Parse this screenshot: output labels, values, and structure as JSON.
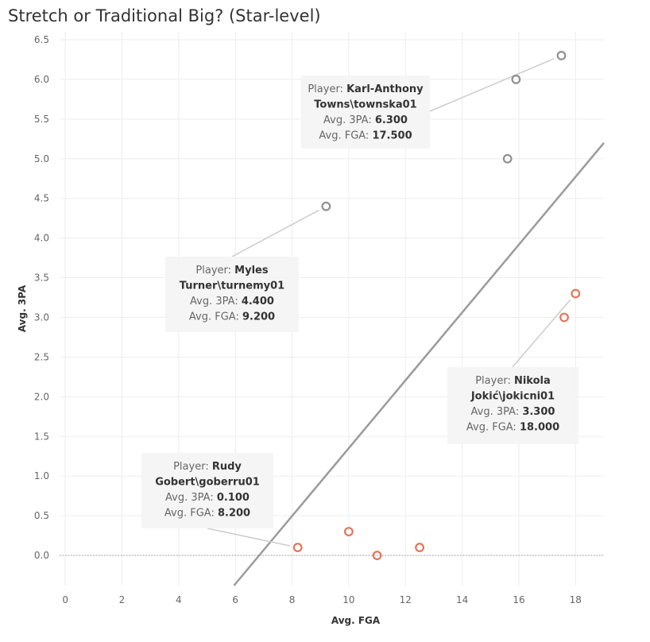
{
  "chart_data": {
    "type": "scatter",
    "title": "Stretch or Traditional Big? (Star-level)",
    "xlabel": "Avg. FGA",
    "ylabel": "Avg. 3PA",
    "xlim": [
      -0.2,
      19
    ],
    "ylim": [
      -0.38,
      6.6
    ],
    "xticks": [
      0,
      2,
      4,
      6,
      8,
      10,
      12,
      14,
      16,
      18
    ],
    "yticks": [
      0.0,
      0.5,
      1.0,
      1.5,
      2.0,
      2.5,
      3.0,
      3.5,
      4.0,
      4.5,
      5.0,
      5.5,
      6.0,
      6.5
    ],
    "grid": true,
    "reference_line": {
      "color": "#9b9b9b",
      "from": [
        5.95,
        -0.38
      ],
      "to": [
        19,
        5.2
      ]
    },
    "zero_line": 0,
    "series": [
      {
        "color": "#e1775a",
        "points": [
          {
            "x": 8.2,
            "y": 0.1
          },
          {
            "x": 10.0,
            "y": 0.3
          },
          {
            "x": 11.0,
            "y": 0.0
          },
          {
            "x": 12.5,
            "y": 0.1
          },
          {
            "x": 17.6,
            "y": 3.0
          },
          {
            "x": 18.0,
            "y": 3.3
          }
        ]
      },
      {
        "color": "#909090",
        "points": [
          {
            "x": 9.2,
            "y": 4.4
          },
          {
            "x": 15.6,
            "y": 5.0
          },
          {
            "x": 15.9,
            "y": 6.0
          },
          {
            "x": 17.5,
            "y": 6.3
          }
        ]
      }
    ],
    "tooltips": [
      {
        "lines": [
          [
            {
              "t": "Player: "
            },
            {
              "t": "Karl-Anthony",
              "b": true
            }
          ],
          [
            {
              "t": "Towns\\townska01",
              "b": true
            }
          ],
          [
            {
              "t": "Avg. 3PA: "
            },
            {
              "t": "6.300",
              "b": true
            }
          ],
          [
            {
              "t": "Avg. FGA: "
            },
            {
              "t": "17.500",
              "b": true
            }
          ]
        ],
        "point": {
          "x": 17.5,
          "y": 6.3
        }
      },
      {
        "lines": [
          [
            {
              "t": "Player: "
            },
            {
              "t": "Myles",
              "b": true
            }
          ],
          [
            {
              "t": "Turner\\turnemy01",
              "b": true
            }
          ],
          [
            {
              "t": "Avg. 3PA: "
            },
            {
              "t": "4.400",
              "b": true
            }
          ],
          [
            {
              "t": "Avg. FGA: "
            },
            {
              "t": "9.200",
              "b": true
            }
          ]
        ],
        "point": {
          "x": 9.2,
          "y": 4.4
        }
      },
      {
        "lines": [
          [
            {
              "t": "Player: "
            },
            {
              "t": "Nikola",
              "b": true
            }
          ],
          [
            {
              "t": "Jokić\\jokicni01",
              "b": true
            }
          ],
          [
            {
              "t": "Avg. 3PA: "
            },
            {
              "t": "3.300",
              "b": true
            }
          ],
          [
            {
              "t": "Avg. FGA: "
            },
            {
              "t": "18.000",
              "b": true
            }
          ]
        ],
        "point": {
          "x": 18.0,
          "y": 3.3
        }
      },
      {
        "lines": [
          [
            {
              "t": "Player: "
            },
            {
              "t": "Rudy",
              "b": true
            }
          ],
          [
            {
              "t": "Gobert\\goberru01",
              "b": true
            }
          ],
          [
            {
              "t": "Avg. 3PA: "
            },
            {
              "t": "0.100",
              "b": true
            }
          ],
          [
            {
              "t": "Avg. FGA: "
            },
            {
              "t": "8.200",
              "b": true
            }
          ]
        ],
        "point": {
          "x": 8.2,
          "y": 0.1
        }
      }
    ]
  }
}
